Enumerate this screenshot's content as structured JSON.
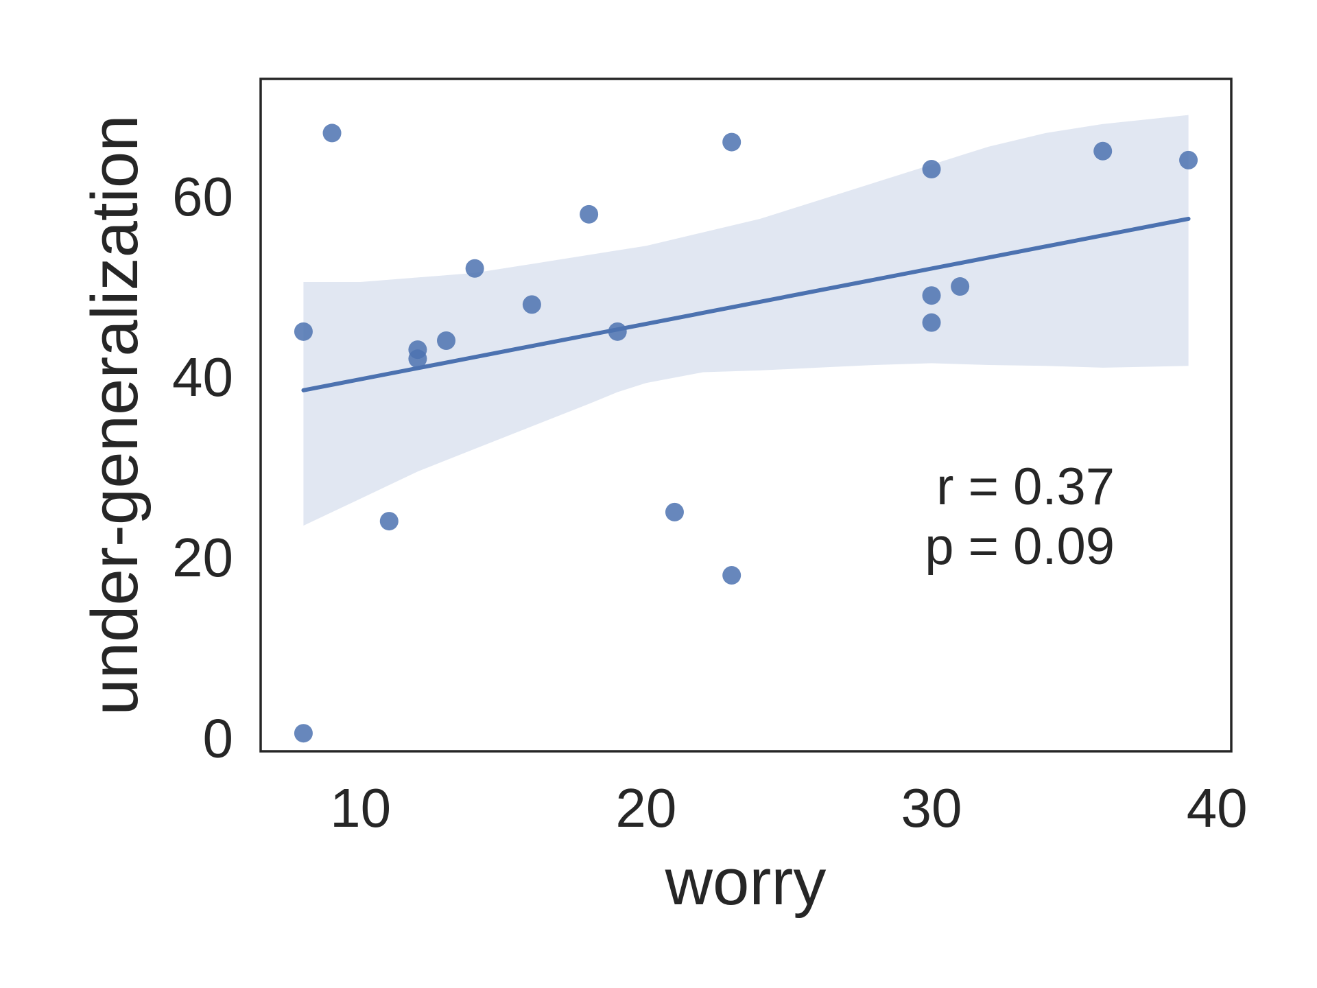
{
  "chart_data": {
    "type": "scatter",
    "xlabel": "worry",
    "ylabel": "under-generalization",
    "xlim": [
      6.5,
      40.5
    ],
    "ylim": [
      -1.5,
      73
    ],
    "xticks": [
      10,
      20,
      30,
      40
    ],
    "xtick_labels": [
      "10",
      "20",
      "30",
      "40"
    ],
    "yticks": [
      0,
      20,
      40,
      60
    ],
    "ytick_labels": [
      "0",
      "20",
      "40",
      "60"
    ],
    "grid": false,
    "point_color": "#4c72b0",
    "band_color": "#e1e7f2",
    "points": [
      {
        "x": 8,
        "y": 45
      },
      {
        "x": 8,
        "y": 0.5
      },
      {
        "x": 9,
        "y": 67
      },
      {
        "x": 11,
        "y": 24
      },
      {
        "x": 12,
        "y": 43
      },
      {
        "x": 12,
        "y": 42
      },
      {
        "x": 13,
        "y": 44
      },
      {
        "x": 14,
        "y": 52
      },
      {
        "x": 16,
        "y": 48
      },
      {
        "x": 18,
        "y": 58
      },
      {
        "x": 19,
        "y": 45
      },
      {
        "x": 21,
        "y": 25
      },
      {
        "x": 23,
        "y": 66
      },
      {
        "x": 23,
        "y": 18
      },
      {
        "x": 30,
        "y": 63
      },
      {
        "x": 30,
        "y": 49
      },
      {
        "x": 30,
        "y": 46
      },
      {
        "x": 31,
        "y": 50
      },
      {
        "x": 36,
        "y": 65
      },
      {
        "x": 39,
        "y": 64
      }
    ],
    "regression": {
      "x": [
        8,
        39
      ],
      "y": [
        38.5,
        57.5
      ]
    },
    "confidence_band": {
      "x": [
        8,
        10,
        12,
        14,
        16,
        18,
        19,
        20,
        22,
        24,
        26,
        28,
        30,
        32,
        34,
        36,
        39
      ],
      "lower": [
        23.5,
        26.5,
        29.5,
        32,
        34.5,
        37,
        38.3,
        39.3,
        40.5,
        40.7,
        41,
        41.3,
        41.5,
        41.3,
        41.2,
        41,
        41.2
      ],
      "upper": [
        50.5,
        50.5,
        51,
        51.5,
        52.5,
        53.5,
        54,
        54.5,
        56,
        57.5,
        59.5,
        61.5,
        63.5,
        65.5,
        67,
        68,
        69
      ]
    },
    "annotations": [
      "r = 0.37",
      "p = 0.09"
    ]
  }
}
